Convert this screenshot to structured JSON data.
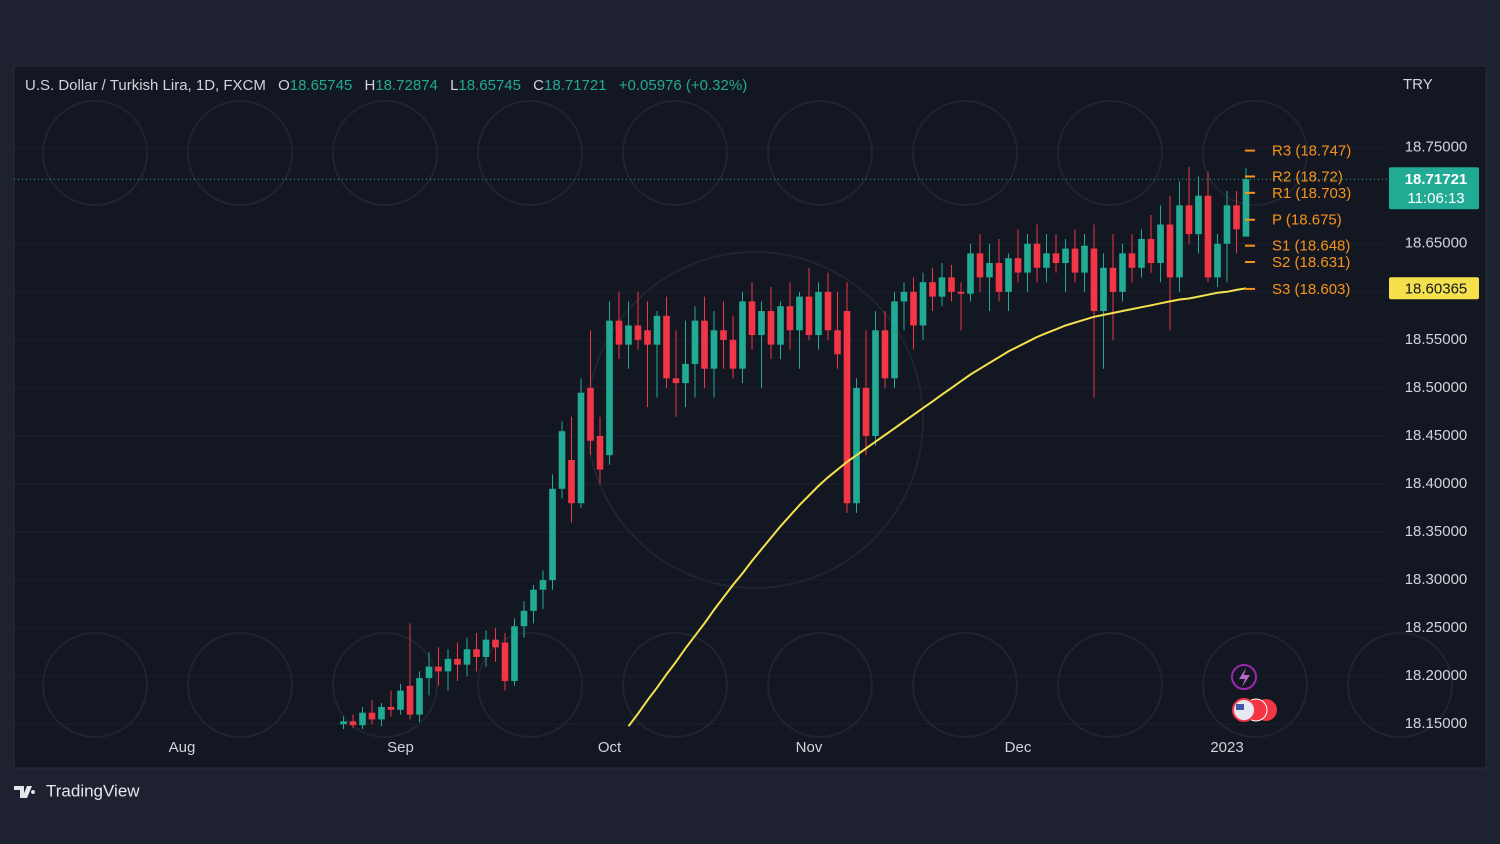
{
  "chart_data": {
    "type": "candlestick",
    "title": "U.S. Dollar / Turkish Lira, 1D, FXCM",
    "ohlc_labels": [
      "O",
      "H",
      "L",
      "C"
    ],
    "change": "+0.05976 (+0.32%)",
    "currency": "TRY",
    "countdown": "11:06:13",
    "brand": "TradingView",
    "up_color": "#22ab94",
    "down_color": "#f23645",
    "ma_color": "#f5e14c",
    "pivot_color": "#f7931a",
    "ylim": [
      18.144,
      18.835
    ],
    "yticks": [
      {
        "value": 18.15,
        "label": "18.15000"
      },
      {
        "value": 18.2,
        "label": "18.20000"
      },
      {
        "value": 18.25,
        "label": "18.25000"
      },
      {
        "value": 18.3,
        "label": "18.30000"
      },
      {
        "value": 18.35,
        "label": "18.35000"
      },
      {
        "value": 18.4,
        "label": "18.40000"
      },
      {
        "value": 18.45,
        "label": "18.45000"
      },
      {
        "value": 18.5,
        "label": "18.50000"
      },
      {
        "value": 18.55,
        "label": "18.55000"
      },
      {
        "value": 18.6,
        "label": "18.60000"
      },
      {
        "value": 18.65,
        "label": "18.65000"
      },
      {
        "value": 18.75,
        "label": "18.75000"
      }
    ],
    "pivots": [
      {
        "label": "R3 (18.747)",
        "value": 18.747
      },
      {
        "label": "R2 (18.72)",
        "value": 18.72
      },
      {
        "label": "R1 (18.703)",
        "value": 18.703
      },
      {
        "label": "P (18.675)",
        "value": 18.675
      },
      {
        "label": "S1 (18.648)",
        "value": 18.648
      },
      {
        "label": "S2 (18.631)",
        "value": 18.631
      },
      {
        "label": "S3 (18.603)",
        "value": 18.603
      }
    ],
    "categories": [
      "Aug",
      null,
      null,
      null,
      null,
      null,
      null,
      null,
      null,
      null,
      null,
      null,
      null,
      null,
      null,
      null,
      null,
      null,
      null,
      null,
      null,
      null,
      null,
      "Sep",
      null,
      null,
      null,
      null,
      null,
      null,
      null,
      null,
      null,
      null,
      null,
      null,
      null,
      null,
      null,
      null,
      null,
      null,
      null,
      null,
      null,
      "Oct",
      null,
      null,
      null,
      null,
      null,
      null,
      null,
      null,
      null,
      null,
      null,
      null,
      null,
      null,
      null,
      null,
      null,
      null,
      null,
      null,
      "Nov",
      null,
      null,
      null,
      null,
      null,
      null,
      null,
      null,
      null,
      null,
      null,
      null,
      null,
      null,
      null,
      null,
      null,
      null,
      null,
      null,
      null,
      "Dec",
      null,
      null,
      null,
      null,
      null,
      null,
      null,
      null,
      null,
      null,
      null,
      null,
      null,
      null,
      null,
      null,
      null,
      null,
      null,
      null,
      null,
      "2023",
      null,
      null
    ],
    "candles": [
      null,
      null,
      null,
      null,
      null,
      null,
      null,
      null,
      null,
      null,
      null,
      null,
      null,
      null,
      null,
      null,
      null,
      [
        18.15,
        18.158,
        18.145,
        18.153
      ],
      [
        18.153,
        18.16,
        18.146,
        18.149
      ],
      [
        18.149,
        18.168,
        18.145,
        18.162
      ],
      [
        18.162,
        18.175,
        18.15,
        18.155
      ],
      [
        18.155,
        18.172,
        18.148,
        18.168
      ],
      [
        18.168,
        18.185,
        18.158,
        18.165
      ],
      [
        18.165,
        18.192,
        18.16,
        18.185
      ],
      [
        18.19,
        18.255,
        18.155,
        18.16
      ],
      [
        18.16,
        18.205,
        18.152,
        18.198
      ],
      [
        18.198,
        18.225,
        18.18,
        18.21
      ],
      [
        18.21,
        18.23,
        18.19,
        18.205
      ],
      [
        18.205,
        18.228,
        18.185,
        18.218
      ],
      [
        18.218,
        18.235,
        18.195,
        18.212
      ],
      [
        18.212,
        18.24,
        18.2,
        18.228
      ],
      [
        18.228,
        18.245,
        18.205,
        18.22
      ],
      [
        18.22,
        18.248,
        18.21,
        18.238
      ],
      [
        18.238,
        18.25,
        18.215,
        18.23
      ],
      [
        18.235,
        18.245,
        18.185,
        18.195
      ],
      [
        18.195,
        18.26,
        18.19,
        18.252
      ],
      [
        18.252,
        18.278,
        18.24,
        18.268
      ],
      [
        18.268,
        18.295,
        18.255,
        18.29
      ],
      [
        18.29,
        18.31,
        18.27,
        18.3
      ],
      [
        18.3,
        18.41,
        18.29,
        18.395
      ],
      [
        18.395,
        18.465,
        18.385,
        18.455
      ],
      [
        18.425,
        18.47,
        18.36,
        18.38
      ],
      [
        18.38,
        18.51,
        18.375,
        18.495
      ],
      [
        18.5,
        18.56,
        18.43,
        18.445
      ],
      [
        18.45,
        18.47,
        18.4,
        18.415
      ],
      [
        18.43,
        18.59,
        18.42,
        18.57
      ],
      [
        18.57,
        18.6,
        18.53,
        18.545
      ],
      [
        18.545,
        18.59,
        18.52,
        18.565
      ],
      [
        18.565,
        18.6,
        18.54,
        18.55
      ],
      [
        18.56,
        18.59,
        18.48,
        18.545
      ],
      [
        18.545,
        18.58,
        18.49,
        18.575
      ],
      [
        18.575,
        18.595,
        18.5,
        18.51
      ],
      [
        18.51,
        18.56,
        18.47,
        18.505
      ],
      [
        18.505,
        18.57,
        18.48,
        18.525
      ],
      [
        18.525,
        18.585,
        18.49,
        18.57
      ],
      [
        18.57,
        18.595,
        18.5,
        18.52
      ],
      [
        18.52,
        18.58,
        18.49,
        18.56
      ],
      [
        18.56,
        18.59,
        18.52,
        18.55
      ],
      [
        18.55,
        18.575,
        18.51,
        18.52
      ],
      [
        18.52,
        18.6,
        18.505,
        18.59
      ],
      [
        18.59,
        18.61,
        18.54,
        18.555
      ],
      [
        18.555,
        18.59,
        18.5,
        18.58
      ],
      [
        18.58,
        18.605,
        18.53,
        18.545
      ],
      [
        18.545,
        18.59,
        18.53,
        18.585
      ],
      [
        18.585,
        18.61,
        18.54,
        18.56
      ],
      [
        18.56,
        18.6,
        18.52,
        18.595
      ],
      [
        18.595,
        18.625,
        18.55,
        18.555
      ],
      [
        18.555,
        18.61,
        18.54,
        18.6
      ],
      [
        18.6,
        18.62,
        18.55,
        18.56
      ],
      [
        18.56,
        18.6,
        18.52,
        18.535
      ],
      [
        18.58,
        18.61,
        18.37,
        18.38
      ],
      [
        18.38,
        18.51,
        18.37,
        18.5
      ],
      [
        18.5,
        18.56,
        18.43,
        18.45
      ],
      [
        18.45,
        18.58,
        18.44,
        18.56
      ],
      [
        18.56,
        18.58,
        18.5,
        18.51
      ],
      [
        18.51,
        18.6,
        18.5,
        18.59
      ],
      [
        18.59,
        18.61,
        18.56,
        18.6
      ],
      [
        18.6,
        18.615,
        18.54,
        18.565
      ],
      [
        18.565,
        18.62,
        18.55,
        18.61
      ],
      [
        18.61,
        18.625,
        18.58,
        18.595
      ],
      [
        18.595,
        18.63,
        18.585,
        18.615
      ],
      [
        18.615,
        18.628,
        18.59,
        18.6
      ],
      [
        18.6,
        18.61,
        18.56,
        18.598
      ],
      [
        18.598,
        18.65,
        18.59,
        18.64
      ],
      [
        18.64,
        18.66,
        18.6,
        18.615
      ],
      [
        18.615,
        18.65,
        18.58,
        18.63
      ],
      [
        18.63,
        18.655,
        18.59,
        18.6
      ],
      [
        18.6,
        18.64,
        18.58,
        18.635
      ],
      [
        18.635,
        18.665,
        18.61,
        18.62
      ],
      [
        18.62,
        18.66,
        18.6,
        18.65
      ],
      [
        18.65,
        18.67,
        18.61,
        18.625
      ],
      [
        18.625,
        18.66,
        18.61,
        18.64
      ],
      [
        18.64,
        18.66,
        18.62,
        18.63
      ],
      [
        18.63,
        18.655,
        18.6,
        18.645
      ],
      [
        18.645,
        18.665,
        18.61,
        18.62
      ],
      [
        18.62,
        18.66,
        18.6,
        18.648
      ],
      [
        18.645,
        18.67,
        18.49,
        18.58
      ],
      [
        18.58,
        18.64,
        18.52,
        18.625
      ],
      [
        18.625,
        18.66,
        18.55,
        18.6
      ],
      [
        18.6,
        18.65,
        18.59,
        18.64
      ],
      [
        18.64,
        18.66,
        18.61,
        18.625
      ],
      [
        18.625,
        18.665,
        18.615,
        18.655
      ],
      [
        18.655,
        18.68,
        18.62,
        18.63
      ],
      [
        18.63,
        18.69,
        18.61,
        18.67
      ],
      [
        18.67,
        18.7,
        18.56,
        18.615
      ],
      [
        18.615,
        18.715,
        18.6,
        18.69
      ],
      [
        18.69,
        18.73,
        18.65,
        18.66
      ],
      [
        18.66,
        18.72,
        18.64,
        18.7
      ],
      [
        18.7,
        18.725,
        18.61,
        18.615
      ],
      [
        18.615,
        18.66,
        18.605,
        18.65
      ],
      [
        18.65,
        18.705,
        18.61,
        18.69
      ],
      [
        18.69,
        18.705,
        18.64,
        18.665
      ],
      [
        18.65745,
        18.72874,
        18.65745,
        18.71721
      ]
    ],
    "ma": [
      null,
      null,
      null,
      null,
      null,
      null,
      null,
      null,
      null,
      null,
      null,
      null,
      null,
      null,
      null,
      null,
      null,
      null,
      null,
      null,
      null,
      null,
      null,
      null,
      null,
      null,
      null,
      null,
      null,
      null,
      null,
      null,
      null,
      null,
      null,
      null,
      null,
      null,
      null,
      null,
      null,
      null,
      null,
      null,
      null,
      null,
      null,
      18.148,
      18.161,
      18.175,
      18.188,
      18.202,
      18.215,
      18.229,
      18.242,
      18.255,
      18.269,
      18.282,
      18.295,
      18.307,
      18.32,
      18.332,
      18.344,
      18.356,
      18.367,
      18.378,
      18.388,
      18.398,
      18.407,
      18.415,
      18.423,
      18.43,
      18.437,
      18.444,
      18.451,
      18.458,
      18.465,
      18.472,
      18.479,
      18.486,
      18.493,
      18.5,
      18.507,
      18.514,
      18.52,
      18.526,
      18.532,
      18.538,
      18.543,
      18.548,
      18.553,
      18.557,
      18.561,
      18.565,
      18.568,
      18.571,
      18.574,
      18.576,
      18.578,
      18.58,
      18.582,
      18.584,
      18.586,
      18.588,
      18.59,
      18.592,
      18.593,
      18.595,
      18.597,
      18.599,
      18.6,
      18.602,
      18.60365
    ]
  }
}
